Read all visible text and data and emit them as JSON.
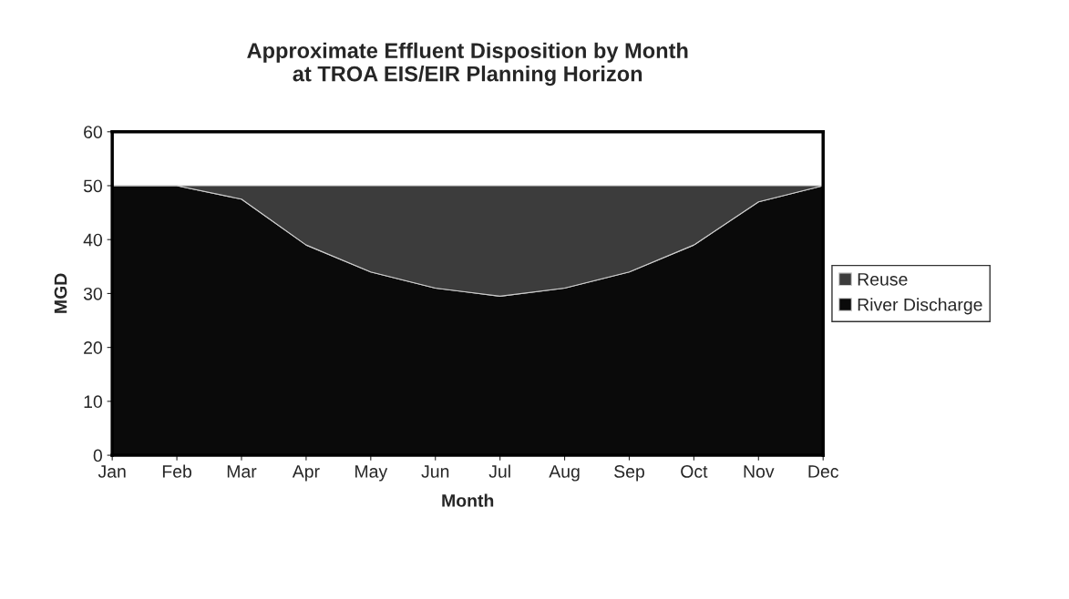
{
  "chart_data": {
    "type": "area",
    "title": "Approximate Effluent Disposition by Month\nat TROA EIS/EIR Planning Horizon",
    "xlabel": "Month",
    "ylabel": "MGD",
    "categories": [
      "Jan",
      "Feb",
      "Mar",
      "Apr",
      "May",
      "Jun",
      "Jul",
      "Aug",
      "Sep",
      "Oct",
      "Nov",
      "Dec"
    ],
    "stacked": true,
    "series": [
      {
        "name": "River Discharge",
        "color": "#0a0a0a",
        "values": [
          50,
          50,
          47.5,
          39,
          34,
          31,
          29.5,
          31,
          34,
          39,
          47,
          50
        ]
      },
      {
        "name": "Reuse",
        "color": "#3c3c3c",
        "values": [
          0,
          0,
          2.5,
          11,
          16,
          19,
          20.5,
          19,
          16,
          11,
          3,
          0
        ]
      }
    ],
    "ylim": [
      0,
      60
    ],
    "yticks": [
      0,
      10,
      20,
      30,
      40,
      50,
      60
    ],
    "grid": false,
    "legend": "right"
  }
}
